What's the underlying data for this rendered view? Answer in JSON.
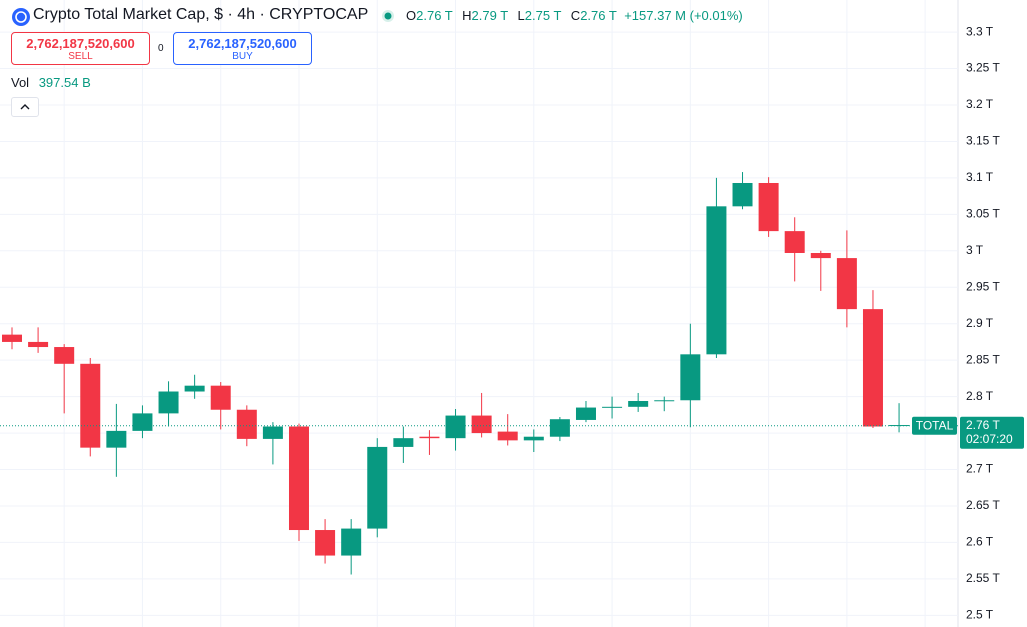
{
  "header": {
    "title": "Crypto Total Market Cap, $ · 4h · CRYPTOCAP",
    "ohlc": [
      {
        "label": "O",
        "value": "2.76 T"
      },
      {
        "label": "H",
        "value": "2.79 T"
      },
      {
        "label": "L",
        "value": "2.75 T"
      },
      {
        "label": "C",
        "value": "2.76 T"
      }
    ],
    "change": "+157.37 M (+0.01%)"
  },
  "trade": {
    "sell_price": "2,762,187,520,600",
    "sell_label": "SELL",
    "spread": "0",
    "buy_price": "2,762,187,520,600",
    "buy_label": "BUY"
  },
  "volume": {
    "label": "Vol",
    "value": "397.54 B"
  },
  "chart_data": {
    "type": "candlestick",
    "categories": [
      null,
      null,
      null,
      null,
      null,
      null,
      null,
      null,
      null,
      null,
      null,
      null,
      null,
      null,
      null,
      null,
      null,
      null,
      null,
      null,
      null,
      null,
      null,
      null,
      null,
      null,
      null,
      null,
      null,
      null,
      null,
      null,
      null,
      null,
      null
    ],
    "open": [
      2.885,
      2.875,
      2.868,
      2.845,
      2.73,
      2.753,
      2.777,
      2.807,
      2.815,
      2.782,
      2.742,
      2.759,
      2.617,
      2.582,
      2.619,
      2.731,
      2.745,
      2.743,
      2.774,
      2.752,
      2.74,
      2.745,
      2.768,
      2.785,
      2.786,
      2.794,
      2.795,
      2.858,
      3.061,
      3.093,
      3.027,
      2.997,
      2.99,
      2.92,
      2.76
    ],
    "high": [
      2.895,
      2.895,
      2.872,
      2.853,
      2.79,
      2.788,
      2.821,
      2.83,
      2.82,
      2.788,
      2.765,
      2.763,
      2.632,
      2.632,
      2.743,
      2.759,
      2.754,
      2.783,
      2.805,
      2.776,
      2.755,
      2.772,
      2.794,
      2.8,
      2.805,
      2.8,
      2.9,
      3.1,
      3.108,
      3.101,
      3.046,
      3.0,
      3.028,
      2.946,
      2.791
    ],
    "low": [
      2.865,
      2.86,
      2.777,
      2.718,
      2.69,
      2.743,
      2.759,
      2.797,
      2.755,
      2.732,
      2.707,
      2.602,
      2.571,
      2.556,
      2.607,
      2.709,
      2.72,
      2.726,
      2.744,
      2.733,
      2.724,
      2.739,
      2.765,
      2.77,
      2.779,
      2.78,
      2.758,
      2.853,
      3.057,
      3.019,
      2.958,
      2.945,
      2.895,
      2.757,
      2.751
    ],
    "close": [
      2.875,
      2.868,
      2.845,
      2.73,
      2.753,
      2.777,
      2.807,
      2.815,
      2.782,
      2.742,
      2.759,
      2.617,
      2.582,
      2.619,
      2.731,
      2.743,
      2.743,
      2.774,
      2.75,
      2.74,
      2.745,
      2.769,
      2.785,
      2.786,
      2.794,
      2.795,
      2.858,
      3.061,
      3.093,
      3.027,
      2.997,
      2.99,
      2.92,
      2.759,
      2.761
    ],
    "up_color": "#089981",
    "down_color": "#f23645",
    "ylim": [
      2.484,
      3.344
    ],
    "yticks": [
      {
        "value": 2.5,
        "label": "2.5 T"
      },
      {
        "value": 2.55,
        "label": "2.55 T"
      },
      {
        "value": 2.6,
        "label": "2.6 T"
      },
      {
        "value": 2.65,
        "label": "2.65 T"
      },
      {
        "value": 2.7,
        "label": "2.7 T"
      },
      {
        "value": 2.75,
        "label": "2.75 T"
      },
      {
        "value": 2.8,
        "label": "2.8 T"
      },
      {
        "value": 2.85,
        "label": "2.85 T"
      },
      {
        "value": 2.9,
        "label": "2.9 T"
      },
      {
        "value": 2.95,
        "label": "2.95 T"
      },
      {
        "value": 3.0,
        "label": "3 T"
      },
      {
        "value": 3.05,
        "label": "3.05 T"
      },
      {
        "value": 3.1,
        "label": "3.1 T"
      },
      {
        "value": 3.15,
        "label": "3.15 T"
      },
      {
        "value": 3.2,
        "label": "3.2 T"
      },
      {
        "value": 3.25,
        "label": "3.25 T"
      },
      {
        "value": 3.3,
        "label": "3.3 T"
      }
    ],
    "grid": true,
    "last_price": {
      "value": 2.76,
      "label": "2.76 T",
      "symbol": "TOTAL",
      "countdown": "02:07:20"
    }
  }
}
